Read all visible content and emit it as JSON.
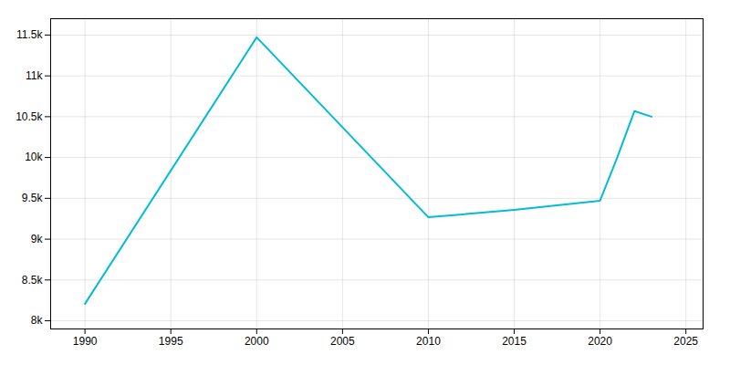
{
  "chart_data": {
    "type": "line",
    "x": [
      1990,
      2000,
      2010,
      2015,
      2020,
      2021,
      2022,
      2023
    ],
    "values": [
      8209,
      11472,
      9268,
      9358,
      9471,
      10000,
      10568,
      10500
    ],
    "color": "#00bcd4",
    "xlim": [
      1988,
      2026
    ],
    "xticks": [
      1990,
      1995,
      2000,
      2005,
      2010,
      2015,
      2020,
      2025
    ],
    "ylim": [
      7900,
      11700
    ],
    "yticks": [
      {
        "value": 8000,
        "label": "8k"
      },
      {
        "value": 8500,
        "label": "8.5k"
      },
      {
        "value": 9000,
        "label": "9k"
      },
      {
        "value": 9500,
        "label": "9.5k"
      },
      {
        "value": 10000,
        "label": "10k"
      },
      {
        "value": 10500,
        "label": "10.5k"
      },
      {
        "value": 11000,
        "label": "11k"
      },
      {
        "value": 11500,
        "label": "11.5k"
      }
    ],
    "grid": true
  }
}
